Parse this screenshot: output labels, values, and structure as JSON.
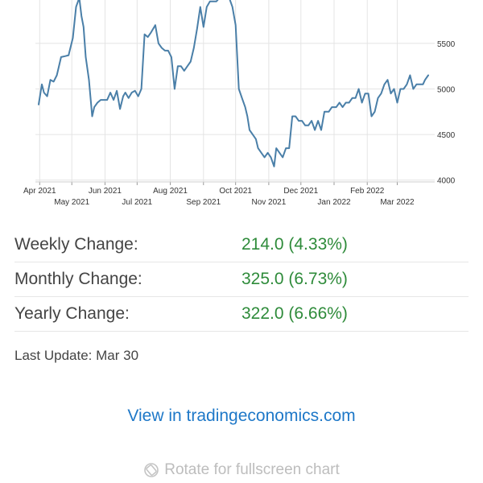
{
  "chart_data": {
    "type": "line",
    "series": [
      {
        "x": [
          "2021-03-31",
          "2021-04-03",
          "2021-04-05",
          "2021-04-08",
          "2021-04-11",
          "2021-04-14",
          "2021-04-17",
          "2021-04-21",
          "2021-04-25",
          "2021-04-28",
          "2021-05-02",
          "2021-05-05",
          "2021-05-08",
          "2021-05-10",
          "2021-05-12",
          "2021-05-14",
          "2021-05-17",
          "2021-05-20",
          "2021-05-22",
          "2021-05-25",
          "2021-05-28",
          "2021-05-31",
          "2021-06-03",
          "2021-06-06",
          "2021-06-09",
          "2021-06-12",
          "2021-06-15",
          "2021-06-18",
          "2021-06-20",
          "2021-06-23",
          "2021-06-26",
          "2021-06-29",
          "2021-07-02",
          "2021-07-05",
          "2021-07-08",
          "2021-07-11",
          "2021-07-14",
          "2021-07-18",
          "2021-07-21",
          "2021-07-24",
          "2021-07-27",
          "2021-07-30",
          "2021-08-02",
          "2021-08-05",
          "2021-08-08",
          "2021-08-11",
          "2021-08-14",
          "2021-08-17",
          "2021-08-20",
          "2021-08-23",
          "2021-08-26",
          "2021-08-29",
          "2021-09-01",
          "2021-09-04",
          "2021-09-07",
          "2021-09-10",
          "2021-09-13",
          "2021-09-16",
          "2021-09-19",
          "2021-09-22",
          "2021-09-25",
          "2021-09-28",
          "2021-10-01",
          "2021-10-04",
          "2021-10-07",
          "2021-10-10",
          "2021-10-12",
          "2021-10-14",
          "2021-10-17",
          "2021-10-20",
          "2021-10-22",
          "2021-10-25",
          "2021-10-28",
          "2021-10-31",
          "2021-11-03",
          "2021-11-06",
          "2021-11-08",
          "2021-11-11",
          "2021-11-14",
          "2021-11-17",
          "2021-11-20",
          "2021-11-23",
          "2021-11-26",
          "2021-11-29",
          "2021-12-02",
          "2021-12-05",
          "2021-12-08",
          "2021-12-11",
          "2021-12-14",
          "2021-12-17",
          "2021-12-20",
          "2021-12-23",
          "2021-12-27",
          "2021-12-30",
          "2022-01-03",
          "2022-01-06",
          "2022-01-09",
          "2022-01-12",
          "2022-01-15",
          "2022-01-18",
          "2022-01-21",
          "2022-01-24",
          "2022-01-27",
          "2022-01-30",
          "2022-02-02",
          "2022-02-05",
          "2022-02-08",
          "2022-02-11",
          "2022-02-14",
          "2022-02-17",
          "2022-02-20",
          "2022-02-23",
          "2022-02-26",
          "2022-03-01",
          "2022-03-04",
          "2022-03-07",
          "2022-03-10",
          "2022-03-13",
          "2022-03-16",
          "2022-03-19",
          "2022-03-22",
          "2022-03-25",
          "2022-03-27",
          "2022-03-30"
        ],
        "y": [
          4830,
          5050,
          4960,
          4920,
          5100,
          5080,
          5150,
          5350,
          5360,
          5370,
          5560,
          5900,
          6000,
          5800,
          5680,
          5350,
          5100,
          4700,
          4800,
          4850,
          4880,
          4880,
          4880,
          4960,
          4880,
          4980,
          4780,
          4920,
          4960,
          4900,
          4960,
          4980,
          4920,
          5000,
          5600,
          5570,
          5620,
          5700,
          5500,
          5450,
          5420,
          5420,
          5350,
          5000,
          5250,
          5250,
          5200,
          5250,
          5300,
          5450,
          5660,
          5900,
          5680,
          5900,
          5960,
          5960,
          5960,
          6000,
          6000,
          6000,
          6000,
          5900,
          5700,
          5000,
          4900,
          4800,
          4700,
          4550,
          4500,
          4450,
          4350,
          4300,
          4250,
          4300,
          4250,
          4150,
          4350,
          4300,
          4250,
          4350,
          4350,
          4700,
          4700,
          4650,
          4650,
          4600,
          4600,
          4650,
          4550,
          4650,
          4550,
          4750,
          4750,
          4800,
          4800,
          4850,
          4800,
          4850,
          4850,
          4900,
          4900,
          5000,
          4850,
          4950,
          4950,
          4700,
          4750,
          4900,
          4950,
          5050,
          5100,
          4950,
          5000,
          4850,
          5000,
          5000,
          5050,
          5150,
          5000,
          5050,
          5050,
          5050,
          5100,
          5150
        ]
      }
    ],
    "x_ticks_top": [
      "Apr 2021",
      "Jun 2021",
      "Aug 2021",
      "Oct 2021",
      "Dec 2021",
      "Feb 2022"
    ],
    "x_ticks_bottom": [
      "May 2021",
      "Jul 2021",
      "Sep 2021",
      "Nov 2021",
      "Jan 2022",
      "Mar 2022"
    ],
    "y_ticks": [
      "5500",
      "5000",
      "4500",
      "4000"
    ],
    "xlim": [
      "2021-03-28",
      "2022-04-05"
    ],
    "ylim": [
      3980,
      6020
    ],
    "y_axis_position": "right",
    "grid": true,
    "line_color": "#4a7fa8",
    "grid_color": "#e4e4e4"
  },
  "stats": [
    {
      "label": "Weekly Change:",
      "value": "214.0 (4.33%)"
    },
    {
      "label": "Monthly Change:",
      "value": "325.0 (6.73%)"
    },
    {
      "label": "Yearly Change:",
      "value": "322.0 (6.66%)"
    }
  ],
  "last_update": "Last Update: Mar 30",
  "link_label": "View in tradingeconomics.com",
  "rotate_label": "Rotate for fullscreen chart",
  "icons": {
    "rotate": "rotate-icon"
  },
  "colors": {
    "positive": "#2e8b3a",
    "link": "#1e78c8",
    "muted": "#bdbdbd"
  }
}
